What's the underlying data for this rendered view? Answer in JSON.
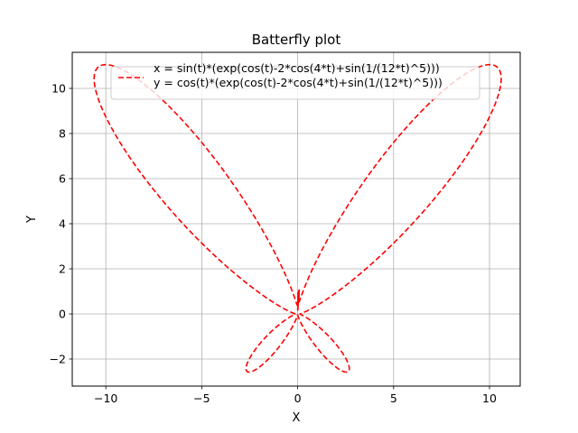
{
  "chart_data": {
    "type": "line",
    "title": "Batterfly plot",
    "xlabel": "X",
    "ylabel": "Y",
    "xlim": [
      -11.75,
      11.6
    ],
    "ylim": [
      -3.2,
      11.6
    ],
    "xticks": [
      -10,
      -5,
      0,
      5,
      10
    ],
    "yticks": [
      -2,
      0,
      2,
      4,
      6,
      8,
      10
    ],
    "xtick_labels": [
      "−10",
      "−5",
      "0",
      "5",
      "10"
    ],
    "ytick_labels": [
      "−2",
      "0",
      "2",
      "4",
      "6",
      "8",
      "10"
    ],
    "grid": true,
    "legend": {
      "placement": "top-center",
      "entries": [
        "x = sin(t)*(exp(cos(t)-2*cos(4*t)+sin(1/(12*t)^5)))",
        "y = cos(t)*(exp(cos(t)-2*cos(4*t)+sin(1/(12*t)^5)))"
      ]
    },
    "series": [
      {
        "color": "#ff0000",
        "linestyle": "dashed",
        "equation_x": "sin(t)*(exp(cos(t)-2*cos(4*t)+sin(1/(12*t)^5)))",
        "equation_y": "cos(t)*(exp(cos(t)-2*cos(4*t)+sin(1/(12*t)^5)))",
        "t_range": [
          0.01,
          6.2832
        ],
        "samples": 3000
      }
    ]
  }
}
